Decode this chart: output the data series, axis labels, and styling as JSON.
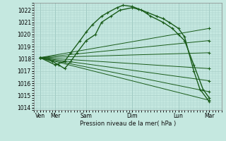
{
  "xlabel": "Pression niveau de la mer( hPa )",
  "ylim": [
    1013.8,
    1022.6
  ],
  "yticks": [
    1014,
    1015,
    1016,
    1017,
    1018,
    1019,
    1020,
    1021,
    1022
  ],
  "xtick_labels": [
    "Ven",
    "Mer",
    "Sam",
    "Dim",
    "Lun",
    "Mar"
  ],
  "xtick_positions": [
    0.0,
    0.5,
    1.5,
    3.0,
    4.5,
    5.5
  ],
  "xlim": [
    -0.2,
    5.9
  ],
  "bg_color": "#c5e8e0",
  "grid_color": "#a8cfc8",
  "line_color": "#1a5c1a",
  "figsize": [
    3.2,
    2.0
  ],
  "dpi": 100,
  "lines": [
    {
      "x": [
        0.0,
        0.5,
        0.8,
        1.0,
        1.3,
        1.5,
        1.7,
        2.0,
        2.2,
        2.5,
        2.7,
        3.0,
        3.2,
        3.5,
        3.8,
        4.0,
        4.2,
        4.5,
        4.7,
        5.0,
        5.2,
        5.5
      ],
      "y": [
        1018.1,
        1017.5,
        1017.8,
        1018.5,
        1019.5,
        1020.2,
        1020.8,
        1021.5,
        1021.8,
        1022.2,
        1022.4,
        1022.3,
        1022.1,
        1021.8,
        1021.5,
        1021.3,
        1021.0,
        1020.5,
        1019.8,
        1017.0,
        1015.5,
        1014.5
      ],
      "lw": 1.0
    },
    {
      "x": [
        0.0,
        0.4,
        0.6,
        0.8,
        1.0,
        1.2,
        1.5,
        1.8,
        2.0,
        2.3,
        2.6,
        3.0,
        3.3,
        3.6,
        4.0,
        4.3,
        4.5,
        4.7,
        5.0,
        5.3,
        5.5
      ],
      "y": [
        1018.1,
        1017.8,
        1017.5,
        1017.2,
        1017.8,
        1018.5,
        1019.5,
        1020.0,
        1021.0,
        1021.5,
        1022.0,
        1022.2,
        1022.0,
        1021.5,
        1021.0,
        1020.5,
        1020.0,
        1019.5,
        1017.5,
        1015.5,
        1014.8
      ],
      "lw": 1.0
    },
    {
      "x": [
        0.0,
        5.5
      ],
      "y": [
        1018.1,
        1020.5
      ],
      "lw": 0.7
    },
    {
      "x": [
        0.0,
        5.5
      ],
      "y": [
        1018.1,
        1019.5
      ],
      "lw": 0.7
    },
    {
      "x": [
        0.0,
        5.5
      ],
      "y": [
        1018.1,
        1018.5
      ],
      "lw": 0.7
    },
    {
      "x": [
        0.0,
        5.5
      ],
      "y": [
        1018.1,
        1017.2
      ],
      "lw": 0.7
    },
    {
      "x": [
        0.0,
        5.5
      ],
      "y": [
        1018.1,
        1016.2
      ],
      "lw": 0.7
    },
    {
      "x": [
        0.0,
        5.5
      ],
      "y": [
        1018.1,
        1015.3
      ],
      "lw": 0.7
    },
    {
      "x": [
        0.0,
        5.5
      ],
      "y": [
        1018.1,
        1014.6
      ],
      "lw": 0.7
    }
  ]
}
